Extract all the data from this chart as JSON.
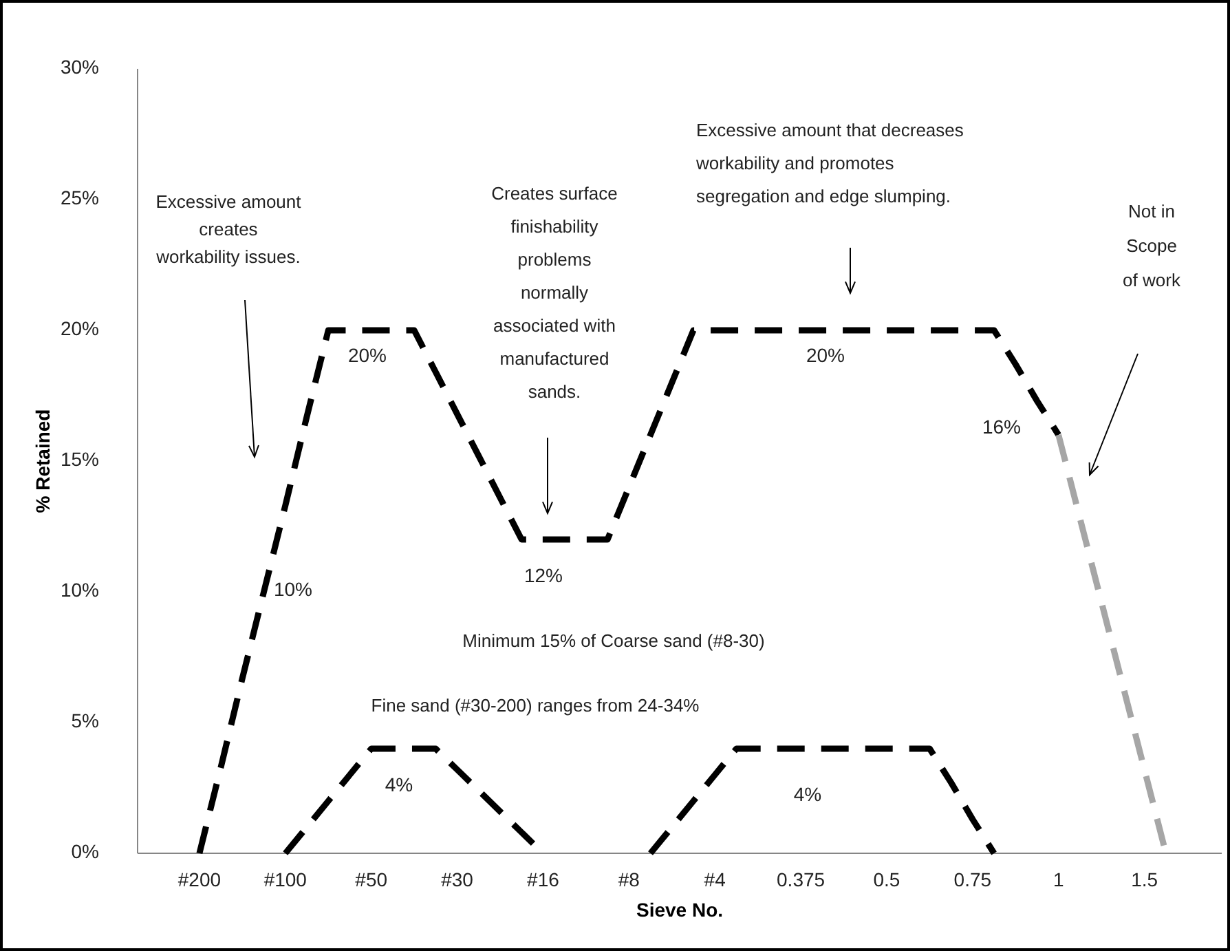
{
  "chart_data": {
    "type": "line",
    "xlabel": "Sieve No.",
    "ylabel": "% Retained",
    "line_style": "dashed",
    "marker": "none",
    "grid": false,
    "categories": [
      null,
      null,
      "#200",
      null,
      null,
      null,
      "#100",
      null,
      null,
      null,
      "#50",
      null,
      null,
      null,
      "#30",
      null,
      null,
      null,
      "#16",
      null,
      null,
      null,
      "#8",
      null,
      null,
      null,
      "#4",
      null,
      null,
      null,
      "0.375",
      null,
      null,
      null,
      "0.5",
      null,
      null,
      null,
      "0.75",
      null,
      null,
      null,
      "1",
      null,
      null,
      null,
      "1.5",
      null,
      null,
      null,
      null
    ],
    "ylim": [
      0,
      30
    ],
    "yticks": [
      {
        "value": 0,
        "label": "0%"
      },
      {
        "value": 5,
        "label": "5%"
      },
      {
        "value": 10,
        "label": "10%"
      },
      {
        "value": 15,
        "label": "15%"
      },
      {
        "value": 20,
        "label": "20%"
      },
      {
        "value": 25,
        "label": "25%"
      },
      {
        "value": 30,
        "label": "30%"
      }
    ],
    "series": [
      {
        "color": "#000000",
        "values": [
          null,
          null,
          0,
          3.3,
          6.7,
          10,
          13.3,
          16.7,
          20,
          20,
          20,
          20,
          20,
          18.4,
          16.8,
          15.2,
          13.6,
          12,
          12,
          12,
          12,
          12,
          14,
          16,
          18,
          20,
          20,
          20,
          20,
          20,
          20,
          20,
          20,
          20,
          20,
          20,
          20,
          20,
          20,
          20,
          18.7,
          17.3,
          16,
          null,
          null,
          null,
          null,
          null,
          null,
          null,
          null
        ]
      },
      {
        "color": "#a6a6a6",
        "values": [
          null,
          null,
          null,
          null,
          null,
          null,
          null,
          null,
          null,
          null,
          null,
          null,
          null,
          null,
          null,
          null,
          null,
          null,
          null,
          null,
          null,
          null,
          null,
          null,
          null,
          null,
          null,
          null,
          null,
          null,
          null,
          null,
          null,
          null,
          null,
          null,
          null,
          null,
          null,
          null,
          null,
          null,
          16,
          12.8,
          9.6,
          6.4,
          3.2,
          0,
          null,
          null,
          null
        ]
      },
      {
        "color": "#000000",
        "values": [
          null,
          null,
          null,
          null,
          null,
          null,
          0,
          1,
          2,
          3,
          4,
          4,
          4,
          4,
          3.2,
          2.4,
          1.6,
          0.8,
          0,
          null,
          null,
          null,
          null,
          0,
          1,
          2,
          3,
          4,
          4,
          4,
          4,
          4,
          4,
          4,
          4,
          4,
          4,
          2.7,
          1.3,
          0,
          null,
          null,
          null,
          null,
          null,
          null,
          null,
          null,
          null,
          null,
          null
        ]
      }
    ],
    "annotations": [
      "Excessive amount\ncreates\nworkability issues.",
      "Creates surface\nfinishability\nproblems\nnormally\nassociated with\nmanufactured\nsands.",
      "Excessive amount that decreases\nworkability and promotes\nsegregation and edge slumping.",
      "Not in\nScope\nof work",
      "Minimum 15% of Coarse sand (#8-30)",
      "Fine sand (#30-200) ranges from 24-34%",
      "20%",
      "10%",
      "12%",
      "20%",
      "16%",
      "4%",
      "4%"
    ]
  }
}
